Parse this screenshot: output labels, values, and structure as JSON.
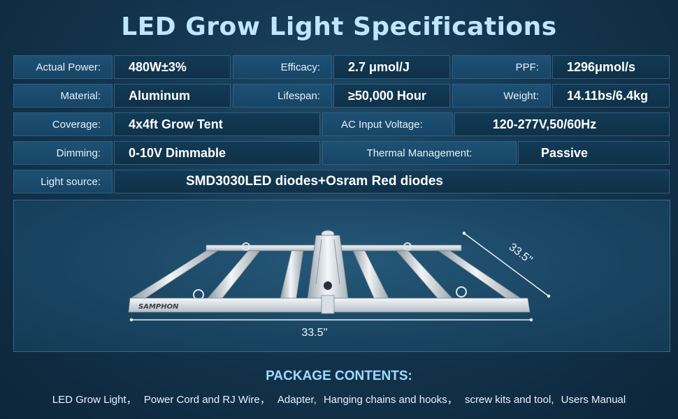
{
  "title": "LED Grow Light Specifications",
  "specs": {
    "actual_power": {
      "label": "Actual Power:",
      "value": "480W±3%"
    },
    "efficacy": {
      "label": "Efficacy:",
      "value": "2.7 μmol/J"
    },
    "ppf": {
      "label": "PPF:",
      "value": "1296μmol/s"
    },
    "material": {
      "label": "Material:",
      "value": "Aluminum"
    },
    "lifespan": {
      "label": "Lifespan:",
      "value": "≥50,000 Hour"
    },
    "weight": {
      "label": "Weight:",
      "value": "14.11bs/6.4kg"
    },
    "coverage": {
      "label": "Coverage:",
      "value": "4x4ft Grow Tent"
    },
    "ac_input": {
      "label": "AC Input Voltage:",
      "value": "120-277V,50/60Hz"
    },
    "dimming": {
      "label": "Dimming:",
      "value": "0-10V Dimmable"
    },
    "thermal": {
      "label": "Thermal Management:",
      "value": "Passive"
    },
    "light_source": {
      "label": "Light source:",
      "value_bold": "SMD3030",
      "value_rest": " LED diodes+Osram Red diodes"
    }
  },
  "diagram": {
    "brand": "SAMPHON",
    "width_label": "33.5''",
    "depth_label": "33.5''"
  },
  "package": {
    "title": "PACKAGE CONTENTS:",
    "items": [
      "LED Grow Light，",
      "Power Cord and RJ Wire，",
      "Adapter,",
      "Hanging chains and hooks，",
      "screw kits and tool,",
      "Users Manual"
    ]
  },
  "colors": {
    "background": "#143650",
    "title": "#bfe6ff",
    "label_bg": "#1d5174",
    "value_bg": "#123a55",
    "accent": "#9fdcff"
  }
}
